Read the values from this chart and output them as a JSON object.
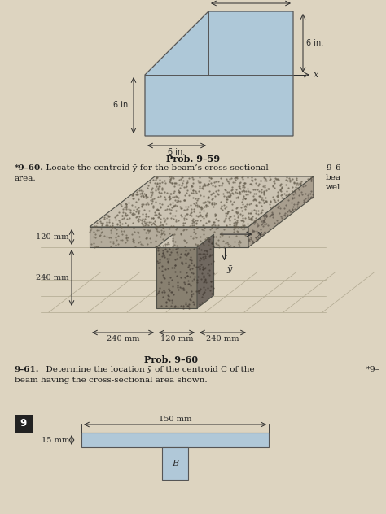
{
  "bg_color": "#ddd4c0",
  "shape59_color": "#aec8d8",
  "shape59_edge": "#555555",
  "prob59_title": "Prob. 9–59",
  "prob60_title": "Prob. 9–60",
  "prob60_bold": "*9–60.",
  "prob60_rest": "  Locate the centroid ȳ for the beam’s cross-sectional",
  "prob60_area": "area.",
  "prob61_bold": "9–61.",
  "prob61_rest": "  Determine the location ȳ of the centroid C of the",
  "prob61_rest2": "beam having the cross-sectional area shown.",
  "dim_color": "#2a2a2a",
  "text_color": "#1a1a1a",
  "label_fs": 7.0,
  "title_fs": 8.0,
  "body_fs": 7.5,
  "slab_top_color": "#ccc4b4",
  "slab_front_color": "#b4ac9c",
  "slab_right_color": "#a89e8e",
  "web_front_color": "#888070",
  "web_right_color": "#706860",
  "web_left_color": "#c0b8a8",
  "grid_color": "#b0a890",
  "beam61_color": "#b0c8d8",
  "beam61_edge": "#555555",
  "page_num_color": "#1a1a1a",
  "right_col_color": "#1a1a1a"
}
